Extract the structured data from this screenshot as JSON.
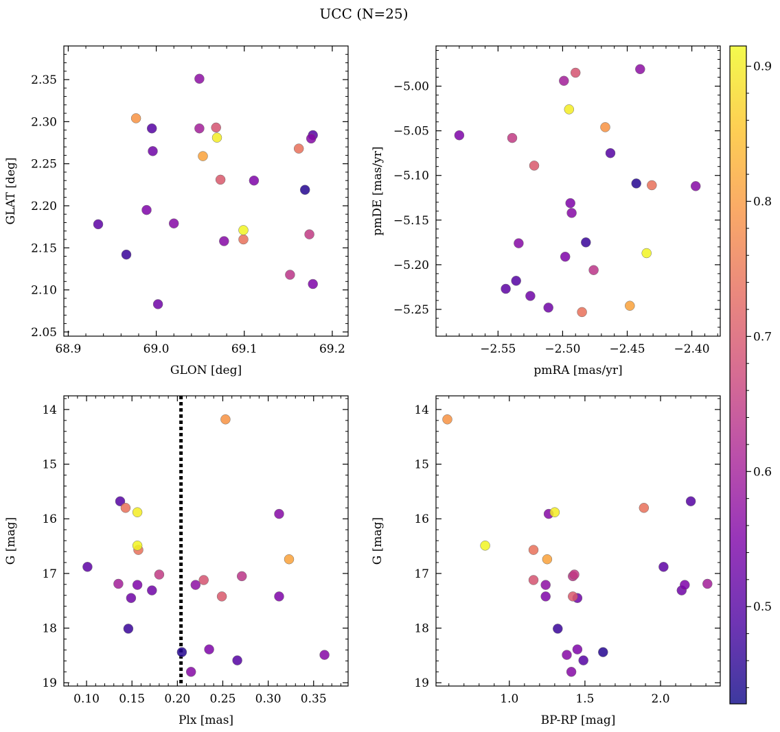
{
  "figure": {
    "title": "UCC (N=25)"
  },
  "colorbar": {
    "colormap": "plasma",
    "range": [
      0.428,
      0.915
    ],
    "ticks": [
      0.5,
      0.6,
      0.7,
      0.8,
      0.9
    ],
    "tick_labels": [
      "0.5",
      "0.6",
      "0.7",
      "0.8",
      "0.9"
    ]
  },
  "stars": [
    {
      "glon": 68.934,
      "glat": 2.178,
      "pmra": -2.544,
      "pmde": -5.227,
      "plx": 0.101,
      "g": 16.88,
      "bprp": 2.02,
      "prob": 0.51
    },
    {
      "glon": 68.966,
      "glat": 2.142,
      "pmra": -2.482,
      "pmde": -5.175,
      "plx": 0.146,
      "g": 18.01,
      "bprp": 1.32,
      "prob": 0.47
    },
    {
      "glon": 68.977,
      "glat": 2.304,
      "pmra": -2.467,
      "pmde": -5.046,
      "plx": 0.253,
      "g": 14.18,
      "bprp": 0.59,
      "prob": 0.79
    },
    {
      "glon": 68.995,
      "glat": 2.292,
      "pmra": -2.536,
      "pmde": -5.218,
      "plx": 0.137,
      "g": 15.68,
      "bprp": 2.2,
      "prob": 0.5
    },
    {
      "glon": 68.996,
      "glat": 2.265,
      "pmra": -2.511,
      "pmde": -5.248,
      "plx": 0.172,
      "g": 17.31,
      "bprp": 2.14,
      "prob": 0.53
    },
    {
      "glon": 68.989,
      "glat": 2.195,
      "pmra": -2.498,
      "pmde": -5.191,
      "plx": 0.156,
      "g": 17.21,
      "bprp": 2.16,
      "prob": 0.55
    },
    {
      "glon": 69.002,
      "glat": 2.083,
      "pmra": -2.525,
      "pmde": -5.235,
      "plx": 0.149,
      "g": 17.45,
      "bprp": 1.45,
      "prob": 0.53
    },
    {
      "glon": 69.02,
      "glat": 2.179,
      "pmra": -2.493,
      "pmde": -5.142,
      "plx": 0.215,
      "g": 18.8,
      "bprp": 1.41,
      "prob": 0.56
    },
    {
      "glon": 69.049,
      "glat": 2.351,
      "pmra": -2.44,
      "pmde": -4.981,
      "plx": 0.22,
      "g": 17.21,
      "bprp": 1.24,
      "prob": 0.57
    },
    {
      "glon": 69.049,
      "glat": 2.292,
      "pmra": -2.499,
      "pmde": -4.994,
      "plx": 0.135,
      "g": 17.19,
      "bprp": 2.31,
      "prob": 0.6
    },
    {
      "glon": 69.068,
      "glat": 2.293,
      "pmra": -2.49,
      "pmde": -4.985,
      "plx": 0.229,
      "g": 17.12,
      "bprp": 1.16,
      "prob": 0.69
    },
    {
      "glon": 69.069,
      "glat": 2.281,
      "pmra": -2.495,
      "pmde": -5.026,
      "plx": 0.156,
      "g": 15.88,
      "bprp": 1.3,
      "prob": 0.9
    },
    {
      "glon": 69.053,
      "glat": 2.259,
      "pmra": -2.448,
      "pmde": -5.246,
      "plx": 0.323,
      "g": 16.74,
      "bprp": 1.25,
      "prob": 0.81
    },
    {
      "glon": 69.073,
      "glat": 2.231,
      "pmra": -2.522,
      "pmde": -5.089,
      "plx": 0.249,
      "g": 17.42,
      "bprp": 1.42,
      "prob": 0.7
    },
    {
      "glon": 69.111,
      "glat": 2.23,
      "pmra": -2.494,
      "pmde": -5.131,
      "plx": 0.312,
      "g": 17.42,
      "bprp": 1.24,
      "prob": 0.55
    },
    {
      "glon": 69.077,
      "glat": 2.158,
      "pmra": -2.534,
      "pmde": -5.176,
      "plx": 0.312,
      "g": 15.91,
      "bprp": 1.26,
      "prob": 0.56
    },
    {
      "glon": 69.099,
      "glat": 2.171,
      "pmra": -2.435,
      "pmde": -5.187,
      "plx": 0.156,
      "g": 16.49,
      "bprp": 0.84,
      "prob": 0.91
    },
    {
      "glon": 69.099,
      "glat": 2.16,
      "pmra": -2.485,
      "pmde": -5.253,
      "plx": 0.157,
      "g": 16.57,
      "bprp": 1.16,
      "prob": 0.74
    },
    {
      "glon": 69.169,
      "glat": 2.219,
      "pmra": -2.443,
      "pmde": -5.109,
      "plx": 0.205,
      "g": 18.44,
      "bprp": 1.62,
      "prob": 0.45
    },
    {
      "glon": 69.178,
      "glat": 2.284,
      "pmra": -2.463,
      "pmde": -5.075,
      "plx": 0.266,
      "g": 18.59,
      "bprp": 1.49,
      "prob": 0.5
    },
    {
      "glon": 69.176,
      "glat": 2.28,
      "pmra": -2.397,
      "pmde": -5.112,
      "plx": 0.362,
      "g": 18.49,
      "bprp": 1.38,
      "prob": 0.56
    },
    {
      "glon": 69.178,
      "glat": 2.107,
      "pmra": -2.58,
      "pmde": -5.055,
      "plx": 0.235,
      "g": 18.39,
      "bprp": 1.45,
      "prob": 0.55
    },
    {
      "glon": 69.162,
      "glat": 2.268,
      "pmra": -2.431,
      "pmde": -5.111,
      "plx": 0.143,
      "g": 15.8,
      "bprp": 1.89,
      "prob": 0.74
    },
    {
      "glon": 69.152,
      "glat": 2.118,
      "pmra": -2.476,
      "pmde": -5.206,
      "plx": 0.271,
      "g": 17.05,
      "bprp": 1.42,
      "prob": 0.64
    },
    {
      "glon": 69.174,
      "glat": 2.166,
      "pmra": -2.539,
      "pmde": -5.058,
      "plx": 0.18,
      "g": 17.02,
      "bprp": 1.43,
      "prob": 0.65
    }
  ],
  "chart_data": [
    {
      "type": "scatter",
      "name": "position",
      "xfield": "glon",
      "yfield": "glat",
      "xlabel": "GLON [deg]",
      "ylabel": "GLAT [deg]",
      "xlim": [
        68.895,
        69.218
      ],
      "ylim": [
        2.045,
        2.39
      ],
      "xticks": [
        68.9,
        69.0,
        69.1,
        69.2
      ],
      "xtick_labels": [
        "68.9",
        "69.0",
        "69.1",
        "69.2"
      ],
      "yticks": [
        2.05,
        2.1,
        2.15,
        2.2,
        2.25,
        2.3,
        2.35
      ],
      "ytick_labels": [
        "2.05",
        "2.10",
        "2.15",
        "2.20",
        "2.25",
        "2.30",
        "2.35"
      ],
      "inverted_y": false
    },
    {
      "type": "scatter",
      "name": "proper-motion",
      "xfield": "pmra",
      "yfield": "pmde",
      "xlabel": "pmRA [mas/yr]",
      "ylabel": "pmDE [mas/yr]",
      "xlim": [
        -2.598,
        -2.378
      ],
      "ylim": [
        -5.28,
        -4.955
      ],
      "xticks": [
        -2.55,
        -2.5,
        -2.45,
        -2.4
      ],
      "xtick_labels": [
        "−2.55",
        "−2.50",
        "−2.45",
        "−2.40"
      ],
      "yticks": [
        -5.25,
        -5.2,
        -5.15,
        -5.1,
        -5.05,
        -5.0
      ],
      "ytick_labels": [
        "−5.25",
        "−5.20",
        "−5.15",
        "−5.10",
        "−5.05",
        "−5.00"
      ],
      "inverted_y": false
    },
    {
      "type": "scatter",
      "name": "parallax-magnitude",
      "xfield": "plx",
      "yfield": "g",
      "xlabel": "Plx [mas]",
      "ylabel": "G [mag]",
      "xlim": [
        0.075,
        0.388
      ],
      "ylim": [
        13.75,
        19.06
      ],
      "xticks": [
        0.1,
        0.15,
        0.2,
        0.25,
        0.3,
        0.35
      ],
      "xtick_labels": [
        "0.10",
        "0.15",
        "0.20",
        "0.25",
        "0.30",
        "0.35"
      ],
      "yticks": [
        14,
        15,
        16,
        17,
        18,
        19
      ],
      "ytick_labels": [
        "14",
        "15",
        "16",
        "17",
        "18",
        "19"
      ],
      "inverted_y": true,
      "vline": 0.204
    },
    {
      "type": "scatter",
      "name": "color-magnitude",
      "xfield": "bprp",
      "yfield": "g",
      "xlabel": "BP-RP [mag]",
      "ylabel": "G [mag]",
      "xlim": [
        0.515,
        2.395
      ],
      "ylim": [
        13.75,
        19.06
      ],
      "xticks": [
        1.0,
        1.5,
        2.0
      ],
      "xtick_labels": [
        "1.0",
        "1.5",
        "2.0"
      ],
      "yticks": [
        14,
        15,
        16,
        17,
        18,
        19
      ],
      "ytick_labels": [
        "14",
        "15",
        "16",
        "17",
        "18",
        "19"
      ],
      "inverted_y": true
    }
  ]
}
